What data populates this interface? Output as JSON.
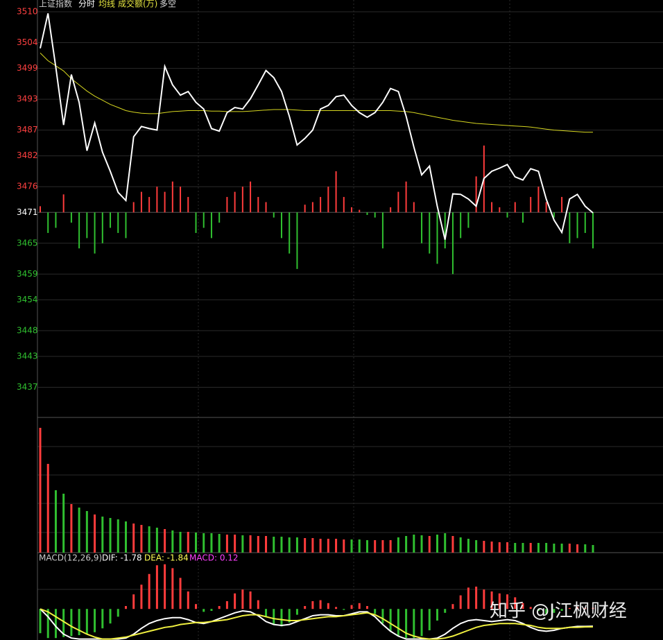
{
  "watermark": "知乎 @J江枫财经",
  "chart_data": [
    {
      "type": "line",
      "title": "上证指数",
      "ylim": [
        3431.4,
        3512.3
      ],
      "yticks": [
        3510,
        3504,
        3499,
        3493,
        3487,
        3482,
        3476,
        3471,
        3465,
        3459,
        3454,
        3448,
        3443,
        3437
      ],
      "grid": true,
      "series": [
        {
          "name": "分时",
          "color": "#ffffff",
          "values": [
            3502.9,
            3509.7,
            3499.2,
            3488.0,
            3497.8,
            3492.4,
            3483.0,
            3488.4,
            3482.7,
            3479.0,
            3474.9,
            3473.3,
            3485.7,
            3487.7,
            3487.3,
            3487.0,
            3499.4,
            3495.8,
            3493.8,
            3494.5,
            3492.4,
            3491.1,
            3487.3,
            3486.8,
            3490.4,
            3491.4,
            3491.1,
            3493.1,
            3495.8,
            3498.6,
            3497.2,
            3494.5,
            3489.7,
            3484.1,
            3485.4,
            3487.0,
            3491.1,
            3491.8,
            3493.5,
            3493.8,
            3491.8,
            3490.4,
            3489.5,
            3490.4,
            3492.4,
            3495.1,
            3494.5,
            3489.7,
            3483.7,
            3478.3,
            3480.0,
            3472.2,
            3465.7,
            3474.6,
            3474.5,
            3473.6,
            3472.2,
            3477.6,
            3479.0,
            3479.6,
            3480.3,
            3477.9,
            3477.3,
            3479.5,
            3479.0,
            3473.6,
            3469.5,
            3467.1,
            3473.6,
            3474.5,
            3472.2,
            3470.9
          ]
        },
        {
          "name": "均线",
          "color": "#d8d820",
          "values": [
            3502.0,
            3500.5,
            3499.5,
            3498.5,
            3497.0,
            3495.8,
            3494.6,
            3493.6,
            3492.8,
            3492.0,
            3491.4,
            3490.8,
            3490.5,
            3490.3,
            3490.2,
            3490.2,
            3490.4,
            3490.6,
            3490.7,
            3490.8,
            3490.8,
            3490.8,
            3490.7,
            3490.7,
            3490.6,
            3490.6,
            3490.6,
            3490.7,
            3490.8,
            3490.9,
            3491.0,
            3491.0,
            3491.0,
            3490.9,
            3490.8,
            3490.8,
            3490.8,
            3490.8,
            3490.8,
            3490.8,
            3490.8,
            3490.8,
            3490.8,
            3490.8,
            3490.8,
            3490.8,
            3490.7,
            3490.6,
            3490.4,
            3490.1,
            3489.8,
            3489.5,
            3489.2,
            3488.9,
            3488.7,
            3488.5,
            3488.3,
            3488.2,
            3488.1,
            3488.0,
            3487.9,
            3487.8,
            3487.7,
            3487.6,
            3487.4,
            3487.2,
            3487.0,
            3486.9,
            3486.8,
            3486.7,
            3486.6,
            3486.6
          ]
        }
      ],
      "balance": {
        "name": "多空",
        "base": 3471,
        "up_color": "#ff3c3c",
        "down_color": "#30c030",
        "values": [
          1.2,
          -4,
          -3,
          3.5,
          -2,
          -7,
          -5,
          -8,
          -6,
          -3,
          -4,
          -5,
          2,
          4,
          3,
          5,
          4,
          6,
          5,
          3,
          -4,
          -3,
          -5,
          -2,
          3,
          4,
          5,
          6,
          3,
          2,
          -1,
          -5,
          -8,
          -11,
          1.5,
          2,
          3,
          5,
          8,
          3,
          1,
          0.5,
          -0.5,
          -1,
          -7,
          1,
          4,
          6,
          2,
          -6,
          -8,
          -10,
          -7,
          -12,
          -5,
          -3,
          7,
          13,
          2,
          1,
          -1,
          2,
          -2,
          3,
          5,
          2,
          -1,
          3,
          -6,
          -5,
          -4,
          -7
        ]
      }
    },
    {
      "type": "bar",
      "title": "成交额(万)",
      "ylim": [
        0,
        194
      ],
      "up_color": "#ff3c3c",
      "down_color": "#30c030",
      "values": [
        180,
        128,
        90,
        85,
        70,
        65,
        60,
        55,
        52,
        50,
        48,
        45,
        42,
        40,
        38,
        36,
        34,
        32,
        30,
        30,
        29,
        28,
        28,
        27,
        26,
        26,
        25,
        25,
        24,
        24,
        23,
        23,
        22,
        22,
        21,
        21,
        20,
        20,
        20,
        19,
        19,
        19,
        18,
        18,
        18,
        18,
        22,
        24,
        26,
        25,
        24,
        26,
        28,
        24,
        22,
        20,
        18,
        17,
        16,
        15,
        15,
        14,
        14,
        14,
        14,
        14,
        13,
        13,
        13,
        12,
        12,
        11
      ]
    },
    {
      "type": "macd",
      "title": "MACD(12,26,9)",
      "ylim": [
        -3.2,
        5.8
      ],
      "series": [
        {
          "name": "DIF",
          "label": "DIF: -1.78",
          "color": "#ffffff",
          "values": [
            0,
            -0.8,
            -1.8,
            -2.6,
            -3.0,
            -3.1,
            -3.1,
            -3.1,
            -3.1,
            -3.1,
            -3.1,
            -3.0,
            -2.6,
            -2.0,
            -1.5,
            -1.2,
            -1.0,
            -0.9,
            -0.9,
            -1.1,
            -1.4,
            -1.5,
            -1.3,
            -1.0,
            -0.7,
            -0.4,
            -0.2,
            -0.3,
            -0.7,
            -1.3,
            -1.6,
            -1.7,
            -1.6,
            -1.3,
            -1.0,
            -0.7,
            -0.6,
            -0.6,
            -0.7,
            -0.7,
            -0.5,
            -0.3,
            -0.3,
            -0.8,
            -1.6,
            -2.3,
            -2.8,
            -3.1,
            -3.1,
            -3.1,
            -3.1,
            -3.0,
            -2.6,
            -2.0,
            -1.5,
            -1.2,
            -1.1,
            -1.2,
            -1.3,
            -1.2,
            -1.1,
            -1.2,
            -1.5,
            -1.9,
            -2.2,
            -2.3,
            -2.2,
            -2.0,
            -1.9,
            -1.8,
            -1.8,
            -1.78
          ]
        },
        {
          "name": "DEA",
          "label": "DEA: -1.84",
          "color": "#f0f040",
          "values": [
            0,
            -0.3,
            -0.8,
            -1.3,
            -1.8,
            -2.2,
            -2.6,
            -2.9,
            -3.1,
            -3.1,
            -3.0,
            -2.9,
            -2.7,
            -2.5,
            -2.3,
            -2.1,
            -1.9,
            -1.8,
            -1.6,
            -1.5,
            -1.4,
            -1.4,
            -1.3,
            -1.2,
            -1.1,
            -0.9,
            -0.7,
            -0.6,
            -0.6,
            -0.8,
            -1.0,
            -1.1,
            -1.2,
            -1.2,
            -1.1,
            -1.0,
            -0.9,
            -0.8,
            -0.8,
            -0.7,
            -0.6,
            -0.5,
            -0.4,
            -0.6,
            -1.0,
            -1.5,
            -2.0,
            -2.5,
            -2.8,
            -3.0,
            -3.1,
            -3.1,
            -3.0,
            -2.8,
            -2.5,
            -2.2,
            -1.9,
            -1.7,
            -1.6,
            -1.5,
            -1.5,
            -1.5,
            -1.6,
            -1.7,
            -1.9,
            -2.0,
            -2.0,
            -2.0,
            -1.9,
            -1.9,
            -1.85,
            -1.84
          ]
        }
      ],
      "bars": {
        "name": "MACD",
        "label": "MACD: 0.12",
        "label_color": "#ff40ff",
        "up_color": "#ff3c3c",
        "down_color": "#30c030",
        "values": [
          -2.5,
          -3.0,
          -3.0,
          -2.9,
          -2.8,
          -2.7,
          -2.6,
          -2.4,
          -2.0,
          -1.5,
          -0.8,
          0.3,
          1.5,
          2.5,
          3.6,
          4.5,
          4.6,
          4.2,
          3.2,
          1.8,
          0.5,
          -0.3,
          -0.2,
          0.3,
          0.8,
          1.6,
          2.0,
          1.8,
          0.9,
          -0.8,
          -1.6,
          -1.8,
          -1.4,
          -0.6,
          0.3,
          0.8,
          0.9,
          0.6,
          0.2,
          -0.1,
          0.4,
          0.6,
          0.3,
          -0.5,
          -1.5,
          -2.3,
          -2.8,
          -3.0,
          -3.0,
          -2.8,
          -2.2,
          -1.2,
          -0.4,
          0.5,
          1.4,
          2.2,
          2.3,
          2.0,
          1.8,
          1.6,
          1.5,
          1.2,
          0.6,
          0.2,
          -0.2,
          -0.5,
          -0.4,
          -0.2,
          0.1,
          0.2,
          0.1,
          0.12
        ]
      }
    }
  ]
}
